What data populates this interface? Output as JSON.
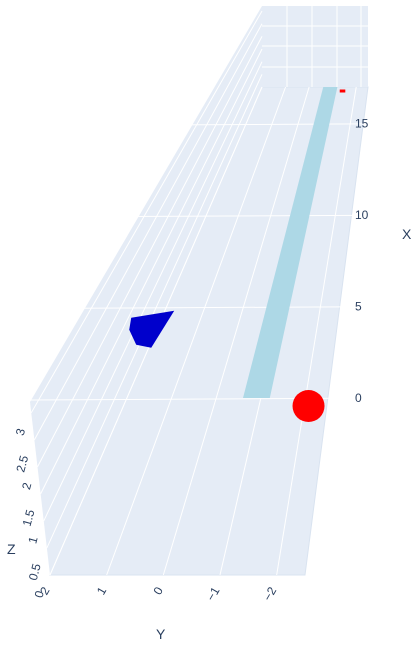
{
  "chart_data": {
    "type": "scatter3d",
    "axes": {
      "x": {
        "title": "X",
        "ticks": [
          "0",
          "5",
          "10",
          "15"
        ]
      },
      "y": {
        "title": "Y",
        "ticks": [
          "2",
          "1",
          "0",
          "−1",
          "−2"
        ]
      },
      "z": {
        "title": "Z",
        "ticks": [
          "0",
          "0.5",
          "1",
          "1.5",
          "2",
          "2.5",
          "3"
        ]
      }
    },
    "objects": [
      {
        "name": "",
        "shape": "plane",
        "color": "#add8e6",
        "x_range": [
          0,
          17
        ],
        "y_range": [
          -1.2,
          -0.6
        ],
        "z": 0
      },
      {
        "name": "",
        "shape": "sphere",
        "color": "#ff0000",
        "x": 0,
        "y": -2,
        "z": 0
      },
      {
        "name": "",
        "shape": "cone",
        "color": "#0000cc",
        "x": 0,
        "y": 1.5,
        "z": 2
      },
      {
        "name": "",
        "shape": "line",
        "color": "#ff0000",
        "x": 17,
        "y": [
          -1.3,
          -0.9
        ],
        "z": 0
      }
    ],
    "colors": {
      "scene_bg": "#e5ecf6",
      "grid": "#ffffff",
      "text": "#2a3f5f"
    }
  }
}
